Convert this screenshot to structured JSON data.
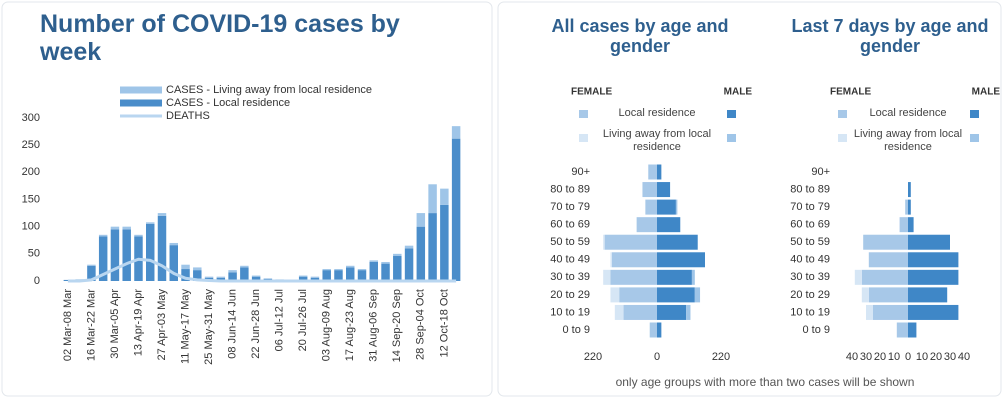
{
  "chart_data": [
    {
      "type": "bar",
      "title": "Number of COVID-19 cases by week",
      "categories": [
        "02 Mar-08 Mar",
        null,
        "16 Mar-22 Mar",
        null,
        "30 Mar-05 Apr",
        null,
        "13 Apr-19 Apr",
        null,
        "27 Apr-03 May",
        null,
        "11 May-17 May",
        null,
        "25 May-31 May",
        null,
        "08 Jun-14 Jun",
        null,
        "22 Jun-28 Jun",
        null,
        "06 Jul-12 Jul",
        null,
        "20 Jul-26 Jul",
        null,
        "03 Aug-09 Aug",
        null,
        "17 Aug-23 Aug",
        null,
        "31 Aug-06 Sep",
        null,
        "14 Sep-20 Sep",
        null,
        "28 Sep-04 Oct",
        null,
        "12 Oct-18 Oct",
        null
      ],
      "series": [
        {
          "name": "CASES - Living away from local residence",
          "type": "bar",
          "color": "#9fc5e8",
          "values": [
            0,
            0,
            2,
            3,
            5,
            5,
            3,
            3,
            5,
            4,
            8,
            5,
            2,
            2,
            4,
            3,
            2,
            1,
            1,
            0,
            2,
            2,
            2,
            2,
            3,
            2,
            3,
            3,
            4,
            5,
            25,
            53,
            30,
            23
          ]
        },
        {
          "name": "CASES - Local residence",
          "type": "bar",
          "color": "#4a8dca",
          "values": [
            2,
            3,
            28,
            82,
            95,
            95,
            82,
            105,
            120,
            66,
            22,
            20,
            6,
            6,
            16,
            25,
            8,
            4,
            2,
            2,
            8,
            6,
            20,
            20,
            25,
            20,
            35,
            32,
            46,
            60,
            100,
            125,
            140,
            262
          ]
        },
        {
          "name": "DEATHS",
          "type": "line",
          "color": "#b9d6f0",
          "values": [
            0,
            0,
            2,
            12,
            22,
            32,
            40,
            38,
            28,
            14,
            5,
            2,
            1,
            0,
            0,
            0,
            0,
            0,
            0,
            0,
            0,
            0,
            0,
            0,
            0,
            0,
            0,
            0,
            0,
            0,
            0,
            0,
            0,
            0
          ]
        }
      ],
      "ylim": [
        0,
        300
      ],
      "yticks": [
        0,
        50,
        100,
        150,
        200,
        250,
        300
      ]
    },
    {
      "type": "pyramid",
      "title": "All cases by age and gender",
      "left_label": "FEMALE",
      "right_label": "MALE",
      "categories": [
        "90+",
        "80 to 89",
        "70 to 79",
        "60 to 69",
        "50 to 59",
        "40 to 49",
        "30 to 39",
        "20 to 29",
        "10 to 19",
        "0 to 9"
      ],
      "groups": [
        {
          "name": "Local residence",
          "female_color": "#a7c8e8",
          "male_color": "#3f87c7",
          "female": [
            30,
            50,
            40,
            70,
            180,
            155,
            160,
            130,
            115,
            25
          ],
          "male": [
            15,
            45,
            65,
            80,
            140,
            165,
            120,
            130,
            100,
            15
          ]
        },
        {
          "name": "Living away from local residence",
          "female_color": "#d6e6f5",
          "male_color": "#9fc5e8",
          "female": [
            0,
            0,
            0,
            0,
            5,
            5,
            25,
            30,
            30,
            0
          ],
          "male": [
            0,
            0,
            5,
            0,
            0,
            0,
            10,
            18,
            15,
            0
          ]
        }
      ],
      "xlim": [
        -220,
        220
      ],
      "xticks": [
        {
          "value": -220,
          "label": "220"
        },
        0,
        220
      ]
    },
    {
      "type": "pyramid",
      "title": "Last 7 days by age and gender",
      "left_label": "FEMALE",
      "right_label": "MALE",
      "categories": [
        "90+",
        "80 to 89",
        "70 to 79",
        "60 to 69",
        "50 to 59",
        "40 to 49",
        "30 to 39",
        "20 to 29",
        "10 to 19",
        "0 to 9"
      ],
      "groups": [
        {
          "name": "Local residence",
          "female_color": "#a7c8e8",
          "male_color": "#3f87c7",
          "female": [
            0,
            0,
            2,
            6,
            32,
            28,
            33,
            28,
            25,
            8
          ],
          "male": [
            0,
            2,
            2,
            4,
            30,
            36,
            36,
            28,
            36,
            6
          ]
        },
        {
          "name": "Living away from local residence",
          "female_color": "#d6e6f5",
          "male_color": "#9fc5e8",
          "female": [
            0,
            0,
            0,
            0,
            0,
            0,
            5,
            5,
            5,
            0
          ],
          "male": [
            0,
            0,
            0,
            0,
            0,
            0,
            0,
            0,
            0,
            0
          ]
        }
      ],
      "xlim": [
        -40,
        40
      ],
      "xticks": [
        {
          "value": -40,
          "label": "40"
        },
        {
          "value": -30,
          "label": "30"
        },
        {
          "value": -20,
          "label": "20"
        },
        {
          "value": -10,
          "label": "10"
        },
        0,
        10,
        20,
        30,
        40
      ]
    }
  ],
  "note": "only age groups with more than two cases will be shown"
}
